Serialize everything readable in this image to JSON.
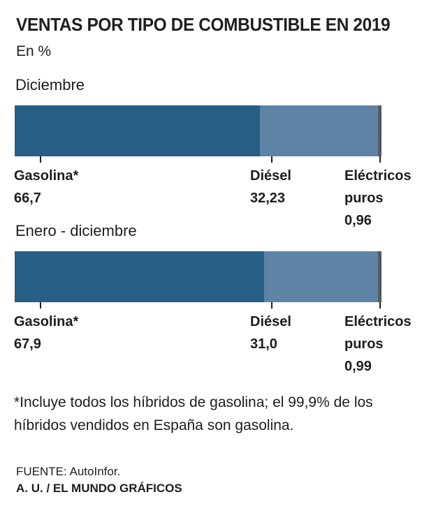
{
  "title": "VENTAS POR TIPO DE COMBUSTIBLE EN 2019",
  "subtitle": "En %",
  "sections": [
    {
      "period": "Diciembre",
      "segments": [
        {
          "label": "Gasolina*",
          "value_label": "66,7"
        },
        {
          "label": "Diésel",
          "value_label": "32,23"
        },
        {
          "label": "Eléctricos puros",
          "value_label": "0,96"
        }
      ]
    },
    {
      "period": "Enero - diciembre",
      "segments": [
        {
          "label": "Gasolina*",
          "value_label": "67,9"
        },
        {
          "label": "Diésel",
          "value_label": "31,0"
        },
        {
          "label": "Eléctricos puros",
          "value_label": "0,99"
        }
      ]
    }
  ],
  "footnote": "*Incluye todos los híbridos de gasolina; el 99,9% de los híbridos vendidos en España son gasolina.",
  "source": "FUENTE: AutoInfor.",
  "credit": "A. U. / EL MUNDO GRÁFICOS",
  "colors": {
    "gasolina": "#275e85",
    "diesel": "#5f83a5",
    "electricos": "#57585c",
    "text": "#1d1d1b",
    "background": "#ffffff"
  },
  "chart_data": {
    "type": "bar",
    "orientation": "horizontal",
    "stacked": true,
    "title": "VENTAS POR TIPO DE COMBUSTIBLE EN 2019",
    "units": "En %",
    "categories": [
      "Diciembre",
      "Enero - diciembre"
    ],
    "series": [
      {
        "name": "Gasolina*",
        "values": [
          66.7,
          67.9
        ],
        "color": "#275e85"
      },
      {
        "name": "Diésel",
        "values": [
          32.23,
          31.0
        ],
        "color": "#5f83a5"
      },
      {
        "name": "Eléctricos puros",
        "values": [
          0.96,
          0.99
        ],
        "color": "#57585c"
      }
    ],
    "xlim": [
      0,
      100
    ],
    "grid": false,
    "legend": "inline-labels-below-bars",
    "value_labels": [
      [
        "66,7",
        "32,23",
        "0,96"
      ],
      [
        "67,9",
        "31,0",
        "0,99"
      ]
    ],
    "footnote": "*Incluye todos los híbridos de gasolina; el 99,9% de los híbridos vendidos en España son gasolina.",
    "source": "FUENTE: AutoInfor.",
    "credit": "A. U. / EL MUNDO GRÁFICOS"
  }
}
